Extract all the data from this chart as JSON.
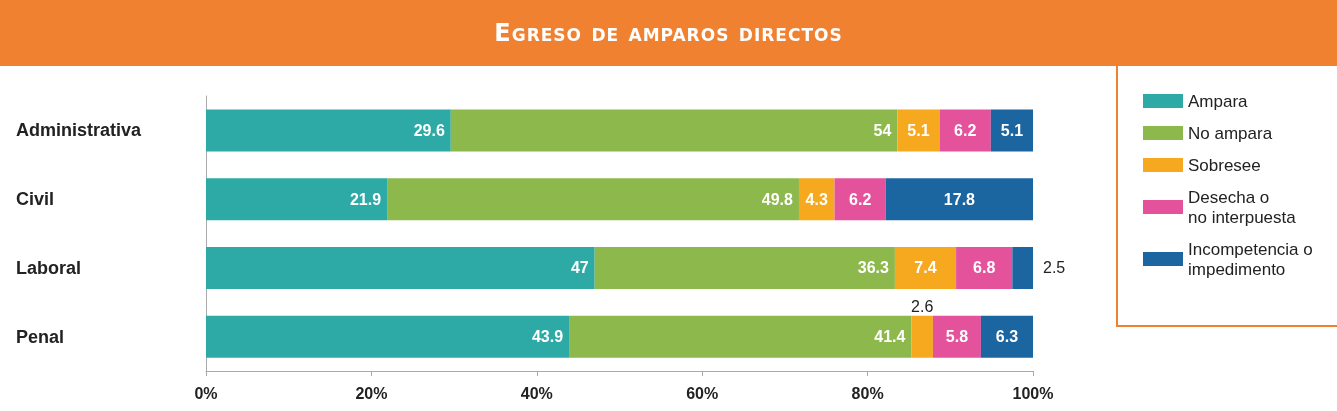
{
  "chart_data": {
    "type": "bar",
    "orientation": "horizontal",
    "stacked": true,
    "title": "Egreso de amparos directos",
    "categories": [
      "Administrativa",
      "Civil",
      "Laboral",
      "Penal"
    ],
    "series": [
      {
        "name": "Ampara",
        "color": "#2eaaa6",
        "values": [
          29.6,
          21.9,
          47,
          43.9
        ]
      },
      {
        "name": "No ampara",
        "color": "#8db84b",
        "values": [
          54,
          49.8,
          36.3,
          41.4
        ]
      },
      {
        "name": "Sobresee",
        "color": "#f6a91f",
        "values": [
          5.1,
          4.3,
          7.4,
          2.6
        ]
      },
      {
        "name": "Desecha o\nno interpuesta",
        "color": "#e5529c",
        "values": [
          6.2,
          6.2,
          6.8,
          5.8
        ]
      },
      {
        "name": "Incompetencia o\nimpedimento",
        "color": "#1b65a1",
        "values": [
          5.1,
          17.8,
          2.5,
          6.3
        ]
      }
    ],
    "xlim": [
      0,
      100
    ],
    "xticks": [
      {
        "value": 0,
        "label": "0%"
      },
      {
        "value": 20,
        "label": "20%"
      },
      {
        "value": 40,
        "label": "40%"
      },
      {
        "value": 60,
        "label": "60%"
      },
      {
        "value": 80,
        "label": "80%"
      },
      {
        "value": 100,
        "label": "100%"
      }
    ],
    "data_labels": true,
    "legend": "right",
    "grid": false
  }
}
